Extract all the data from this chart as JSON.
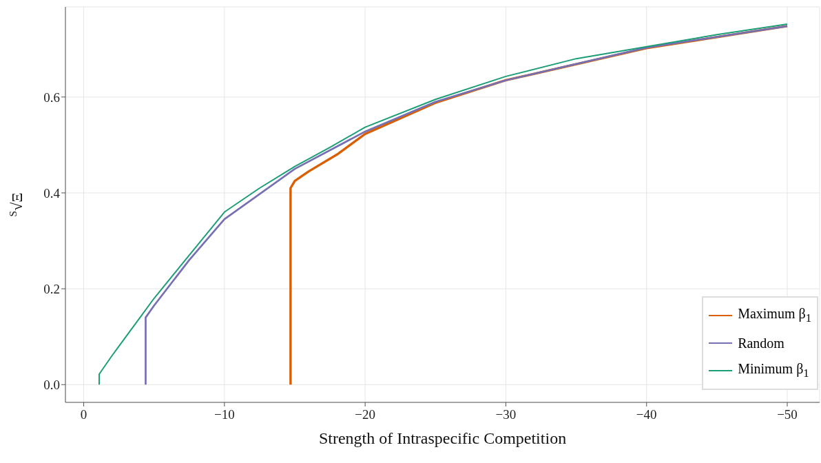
{
  "chart_data": {
    "type": "line",
    "xlabel": "Strength of Intraspecific Competition",
    "ylabel": "$^{S}$√Ξ",
    "xlim": [
      1.3,
      -52.3
    ],
    "ylim": [
      -0.037,
      0.788
    ],
    "xticks": [
      0,
      {
        "value": -10,
        "label": "−10"
      },
      {
        "value": -20,
        "label": "−20"
      },
      {
        "value": -30,
        "label": "−30"
      },
      {
        "value": -40,
        "label": "−40"
      },
      {
        "value": -50,
        "label": "−50"
      }
    ],
    "yticks": [
      {
        "value": 0,
        "label": "0.0"
      },
      {
        "value": 0.2,
        "label": "0.2"
      },
      {
        "value": 0.4,
        "label": "0.4"
      },
      {
        "value": 0.6,
        "label": "0.6"
      }
    ],
    "grid": true,
    "legend": "bottom right",
    "marker": "none",
    "line_style": "solid",
    "series": [
      {
        "name": "Maximum β$_{1}$",
        "color": "#d95f02",
        "x": [
          -14.7,
          -14.7,
          -15,
          -16,
          -18,
          -20,
          -25,
          -30,
          -40,
          -50
        ],
        "values": [
          0,
          0.41,
          0.425,
          0.445,
          0.48,
          0.523,
          0.588,
          0.635,
          0.702,
          0.748
        ]
      },
      {
        "name": "Random",
        "color": "#7570b3",
        "x": [
          -4.4,
          -4.4,
          -5,
          -7.5,
          -10,
          -15,
          -20,
          -25,
          -30,
          -40,
          -50
        ],
        "values": [
          0,
          0.14,
          0.165,
          0.26,
          0.345,
          0.45,
          0.528,
          0.59,
          0.635,
          0.703,
          0.748
        ]
      },
      {
        "name": "Minimum β$_{1}$",
        "color": "#1b9e77",
        "x": [
          -1.1,
          -1.1,
          -2,
          -3,
          -4,
          -5,
          -7.5,
          -10,
          -12.5,
          -15,
          -17.5,
          -20,
          -25,
          -30,
          -35,
          -40,
          -45,
          -50
        ],
        "values": [
          0,
          0.022,
          0.06,
          0.1,
          0.14,
          0.18,
          0.27,
          0.36,
          0.41,
          0.455,
          0.495,
          0.537,
          0.595,
          0.643,
          0.68,
          0.705,
          0.73,
          0.752
        ]
      }
    ]
  }
}
